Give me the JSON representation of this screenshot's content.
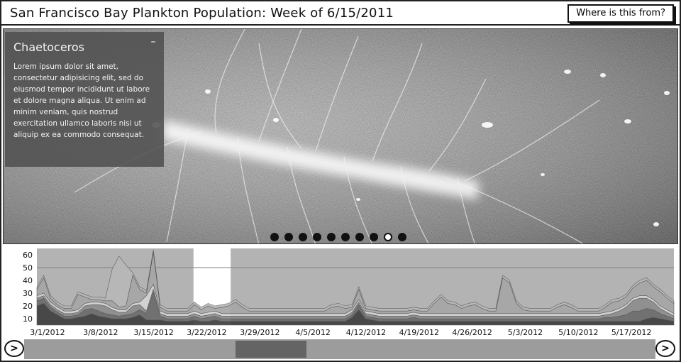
{
  "header": {
    "title": "San Francisco Bay Plankton Population: Week of 6/15/2011",
    "where_button_label": "Where is this from?"
  },
  "info_panel": {
    "title": "Chaetoceros",
    "collapse_glyph": "–",
    "body": "Lorem ipsum dolor sit amet, consectetur adipisicing elit, sed do eiusmod tempor incididunt ut labore et dolore magna aliqua. Ut enim ad minim veniam, quis nostrud exercitation ullamco laboris nisi ut aliquip ex ea commodo consequat."
  },
  "carousel": {
    "count": 10,
    "active_index": 8
  },
  "chart_data": {
    "type": "area",
    "stacked": true,
    "y_ticks": [
      10,
      20,
      30,
      40,
      50,
      60
    ],
    "ylim": [
      5,
      65
    ],
    "x_tick_labels": [
      "3/1/2012",
      "3/8/2012",
      "3/15/2012",
      "3/22/2012",
      "3/29/2012",
      "4/5/2012",
      "4/12/2012",
      "4/19/2012",
      "4/26/2012",
      "5/3/2012",
      "5/10/2012",
      "5/17/2012"
    ],
    "selected_label": "3/22/2012",
    "reference_line": 50,
    "grid": false,
    "x": [
      0,
      1,
      2,
      3,
      4,
      5,
      6,
      7,
      8,
      9,
      10,
      11,
      12,
      13,
      14,
      15,
      16,
      17,
      18,
      19,
      20,
      21,
      22,
      23,
      24,
      25,
      26,
      27,
      28,
      29,
      30,
      31,
      32,
      33,
      34,
      35,
      36,
      37,
      38,
      39,
      40,
      41,
      42,
      43,
      44,
      45,
      46,
      47,
      48,
      49,
      50,
      51,
      52,
      53,
      54,
      55,
      56,
      57,
      58,
      59,
      60,
      61,
      62,
      63,
      64,
      65,
      66,
      67,
      68,
      69,
      70,
      71,
      72,
      73,
      74,
      75,
      76,
      77,
      78,
      79,
      80,
      81,
      82,
      83,
      84,
      85,
      86,
      87,
      88,
      89,
      90,
      91,
      92,
      93
    ],
    "series": [
      {
        "color": "#3f3f3f",
        "values": [
          15,
          17,
          11,
          8,
          5,
          5,
          6,
          7,
          9,
          7,
          6,
          5,
          5,
          5,
          6,
          8,
          4,
          4,
          4,
          3,
          3,
          3,
          3,
          4,
          3,
          3,
          4,
          3,
          3,
          3,
          3,
          3,
          3,
          3,
          3,
          3,
          3,
          3,
          3,
          3,
          3,
          3,
          3,
          3,
          3,
          3,
          6,
          12,
          5,
          4,
          3,
          3,
          3,
          3,
          3,
          3,
          3,
          3,
          3,
          3,
          3,
          3,
          3,
          3,
          3,
          3,
          3,
          3,
          3,
          3,
          3,
          3,
          3,
          3,
          3,
          3,
          3,
          3,
          3,
          3,
          3,
          3,
          3,
          3,
          3,
          3,
          3,
          3,
          3,
          5,
          6,
          5,
          4,
          3
        ]
      },
      {
        "color": "#6c6c6c",
        "values": [
          4,
          4,
          3,
          2,
          2,
          2,
          2,
          5,
          4,
          4,
          3,
          3,
          2,
          3,
          3,
          4,
          5,
          22,
          3,
          2,
          2,
          2,
          2,
          3,
          2,
          3,
          3,
          2,
          2,
          2,
          2,
          2,
          2,
          2,
          2,
          2,
          2,
          2,
          2,
          2,
          2,
          2,
          2,
          2,
          2,
          2,
          2,
          4,
          2,
          2,
          2,
          2,
          2,
          2,
          2,
          3,
          2,
          2,
          2,
          2,
          2,
          2,
          2,
          2,
          2,
          2,
          2,
          2,
          2,
          2,
          2,
          2,
          2,
          2,
          2,
          2,
          2,
          2,
          2,
          2,
          2,
          2,
          2,
          3,
          3,
          4,
          5,
          8,
          8,
          8,
          6,
          4,
          3,
          2
        ]
      },
      {
        "color": "#8e8e8e",
        "values": [
          2,
          2,
          2,
          2,
          2,
          2,
          2,
          3,
          3,
          5,
          6,
          4,
          3,
          2,
          6,
          4,
          2,
          2,
          2,
          2,
          2,
          2,
          2,
          2,
          2,
          2,
          2,
          2,
          2,
          2,
          2,
          2,
          2,
          2,
          2,
          2,
          2,
          2,
          2,
          2,
          2,
          2,
          2,
          2,
          2,
          2,
          2,
          2,
          2,
          2,
          2,
          2,
          2,
          2,
          2,
          2,
          2,
          2,
          2,
          2,
          2,
          2,
          2,
          2,
          2,
          2,
          2,
          2,
          2,
          2,
          2,
          2,
          2,
          2,
          2,
          2,
          2,
          2,
          2,
          2,
          2,
          2,
          2,
          2,
          3,
          4,
          6,
          8,
          10,
          8,
          6,
          4,
          3,
          2
        ]
      },
      {
        "color": "#d4d4d4",
        "values": [
          2,
          2,
          2,
          2,
          2,
          2,
          2,
          2,
          2,
          2,
          2,
          2,
          2,
          2,
          2,
          2,
          12,
          4,
          2,
          2,
          2,
          2,
          2,
          2,
          2,
          2,
          2,
          2,
          2,
          2,
          2,
          2,
          2,
          2,
          2,
          2,
          2,
          2,
          2,
          2,
          2,
          2,
          2,
          2,
          2,
          2,
          2,
          2,
          2,
          2,
          2,
          2,
          2,
          2,
          2,
          2,
          2,
          2,
          2,
          2,
          2,
          2,
          2,
          2,
          2,
          2,
          2,
          2,
          2,
          2,
          2,
          2,
          2,
          2,
          2,
          2,
          2,
          2,
          2,
          2,
          2,
          2,
          2,
          2,
          2,
          2,
          2,
          2,
          2,
          2,
          2,
          2,
          2,
          2
        ]
      },
      {
        "color": "#a6a6a6",
        "values": [
          5,
          12,
          3,
          2,
          2,
          2,
          12,
          5,
          2,
          2,
          2,
          5,
          2,
          3,
          22,
          10,
          2,
          25,
          3,
          2,
          2,
          2,
          2,
          5,
          3,
          5,
          2,
          5,
          6,
          9,
          5,
          2,
          2,
          2,
          2,
          2,
          2,
          2,
          2,
          2,
          2,
          2,
          2,
          5,
          6,
          4,
          2,
          8,
          2,
          2,
          2,
          2,
          2,
          2,
          2,
          2,
          2,
          2,
          8,
          13,
          8,
          7,
          4,
          6,
          7,
          4,
          2,
          2,
          28,
          24,
          8,
          3,
          2,
          2,
          2,
          2,
          5,
          7,
          5,
          2,
          2,
          2,
          2,
          4,
          7,
          6,
          6,
          8,
          10,
          12,
          10,
          11,
          9,
          8
        ]
      },
      {
        "color": "#b8b8b8",
        "values": [
          2,
          2,
          2,
          2,
          2,
          2,
          2,
          2,
          2,
          2,
          2,
          25,
          40,
          32,
          2,
          2,
          2,
          2,
          2,
          2,
          2,
          2,
          2,
          2,
          2,
          2,
          2,
          2,
          2,
          2,
          2,
          2,
          2,
          2,
          2,
          2,
          2,
          2,
          2,
          2,
          2,
          2,
          2,
          2,
          2,
          2,
          2,
          2,
          2,
          2,
          2,
          2,
          2,
          2,
          2,
          2,
          2,
          2,
          2,
          2,
          2,
          2,
          2,
          2,
          2,
          2,
          2,
          2,
          2,
          2,
          2,
          2,
          2,
          2,
          2,
          2,
          2,
          2,
          2,
          2,
          2,
          2,
          2,
          2,
          2,
          2,
          2,
          2,
          2,
          2,
          2,
          2,
          2,
          2
        ]
      }
    ]
  }
}
